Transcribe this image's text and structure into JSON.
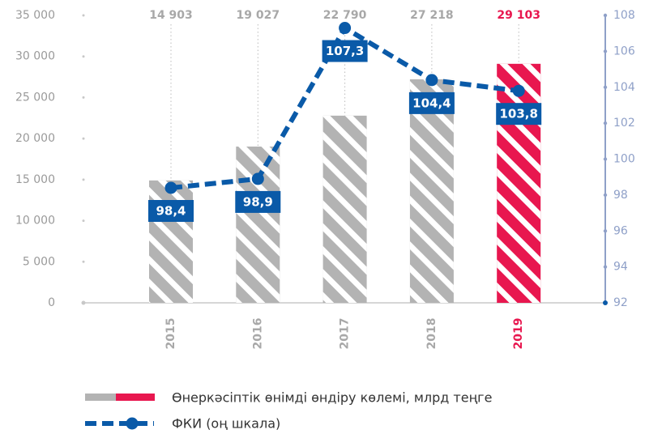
{
  "chart_data": {
    "type": "bar_line",
    "categories": [
      "2015",
      "2016",
      "2017",
      "2018",
      "2019"
    ],
    "series": [
      {
        "name": "Өнеркәсіптік өнімді өндіру көлемі, млрд теңге",
        "type": "bar",
        "color": "#b3b3b3",
        "colors": [
          "#b3b3b3",
          "#b3b3b3",
          "#b3b3b3",
          "#b3b3b3",
          "#e8174f"
        ],
        "values": [
          14903,
          19027,
          22790,
          27218,
          29103
        ],
        "value_labels": [
          "14 903",
          "19 027",
          "22 790",
          "27 218",
          "29 103"
        ]
      },
      {
        "name": "ФКИ (оң шкала)",
        "type": "line",
        "axis": "y2",
        "color": "#0a5aa8",
        "values": [
          98.4,
          98.9,
          107.3,
          104.4,
          103.8
        ],
        "value_labels": [
          "98,4",
          "98,9",
          "107,3",
          "104,4",
          "103,8"
        ]
      }
    ],
    "ylim": [
      0,
      35000
    ],
    "yticks": [
      0,
      {
        "value": 5000,
        "label": "5 000"
      },
      {
        "value": 10000,
        "label": "10 000"
      },
      {
        "value": 15000,
        "label": "15 000"
      },
      {
        "value": 20000,
        "label": "20 000"
      },
      {
        "value": 25000,
        "label": "25 000"
      },
      {
        "value": 30000,
        "label": "30 000"
      },
      {
        "value": 35000,
        "label": "35 000"
      }
    ],
    "y2lim": [
      92,
      108
    ],
    "y2ticks": [
      92,
      94,
      96,
      98,
      100,
      102,
      104,
      106,
      108
    ]
  }
}
